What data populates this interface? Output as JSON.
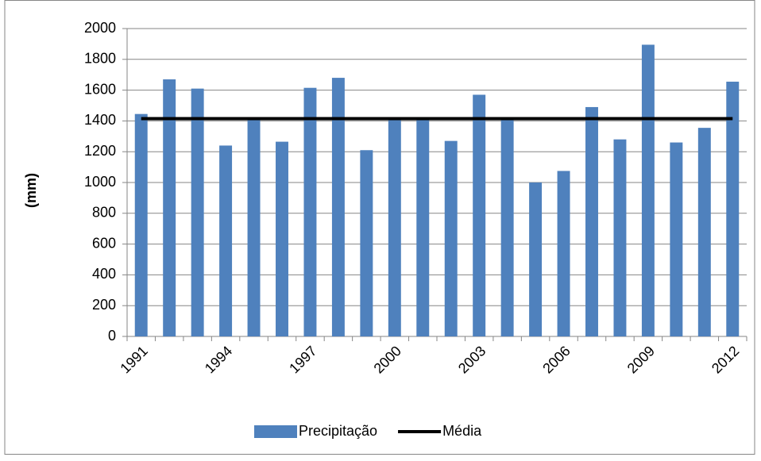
{
  "chart_data": {
    "type": "bar",
    "y_label": "(mm)",
    "categories": [
      "1991",
      null,
      null,
      "1994",
      null,
      null,
      "1997",
      null,
      null,
      "2000",
      null,
      null,
      "2003",
      null,
      null,
      "2006",
      null,
      null,
      "2009",
      null,
      null,
      "2012"
    ],
    "series": [
      {
        "name": "Precipitação",
        "type": "bar",
        "color": "#4f81bd",
        "values": [
          1445,
          1670,
          1610,
          1240,
          1405,
          1265,
          1615,
          1680,
          1210,
          1410,
          1410,
          1270,
          1570,
          1410,
          1000,
          1075,
          1490,
          1280,
          1895,
          1260,
          1355,
          1655
        ]
      },
      {
        "name": "Média",
        "type": "line",
        "color": "#000000",
        "values": [
          1415,
          1415,
          1415,
          1415,
          1415,
          1415,
          1415,
          1415,
          1415,
          1415,
          1415,
          1415,
          1415,
          1415,
          1415,
          1415,
          1415,
          1415,
          1415,
          1415,
          1415,
          1415
        ]
      }
    ],
    "ylim": [
      0,
      2000
    ],
    "yticks": [
      0,
      200,
      400,
      600,
      800,
      1000,
      1200,
      1400,
      1600,
      1800,
      2000
    ],
    "grid": true,
    "legend": "bottom"
  }
}
